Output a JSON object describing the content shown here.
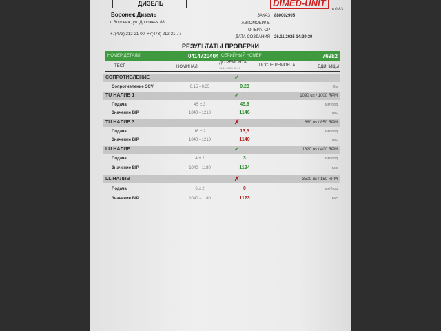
{
  "header": {
    "logo_left": "ДИЗЕЛЬ",
    "logo_right": "DIMED-UNIT",
    "version": "v 0.83",
    "company": "Воронеж Дизель",
    "address": "г. Воронеж, ул. Дорожная 88",
    "phones": "+7(473) 212-21-00, +7(473) 212-21-77",
    "order_label": "ЗАКАЗ",
    "order": "880002905",
    "car_label": "АВТОМОБИЛЬ",
    "operator_label": "ОПЕРАТОР",
    "date_label": "ДАТА СОЗДАНИЯ",
    "date": "26.11.2025  14:29:30"
  },
  "title": "РЕЗУЛЬТАТЫ ПРОВЕРКИ",
  "part": {
    "label": "НОМЕР ДЕТАЛИ",
    "value": "0414720404",
    "serial_label": "СЕРИЙНЫЙ НОМЕР",
    "serial": "76982"
  },
  "columns": {
    "test": "ТЕСТ",
    "nominal": "НОМИНАЛ",
    "before": "ДО РЕМОНТА",
    "before_date": "14.11.2025  13:19",
    "after": "ПОСЛЕ РЕМОНТА",
    "units": "ЕДИНИЦЫ"
  },
  "sections": [
    {
      "name": "СОПРОТИВЛЕНИЕ",
      "status": "ok",
      "mode": "",
      "rows": [
        {
          "test": "Сопротивление SCV",
          "nominal": "0,15 - 0,35",
          "value": "0,20",
          "units": "Ом",
          "status": "ok"
        }
      ]
    },
    {
      "name": "TU НАЛИВ 1",
      "status": "ok",
      "mode": "1090 us / 1000 RPM",
      "rows": [
        {
          "test": "Подача",
          "nominal": "45 ± 3",
          "value": "45,9",
          "units": "мм³/ход",
          "status": "ok"
        },
        {
          "test": "Значение BIP",
          "nominal": "1040 - 1210",
          "value": "1146",
          "units": "мкс",
          "status": "ok"
        }
      ]
    },
    {
      "name": "TU НАЛИВ 3",
      "status": "bad",
      "mode": "660 us / 850 RPM",
      "rows": [
        {
          "test": "Подача",
          "nominal": "16 ± 2",
          "value": "13,5",
          "units": "мм³/ход",
          "status": "bad"
        },
        {
          "test": "Значение BIP",
          "nominal": "1040 - 1210",
          "value": "1140",
          "units": "мкс",
          "status": "bad"
        }
      ]
    },
    {
      "name": "LU НАЛИВ",
      "status": "ok",
      "mode": "1320 us / 400 RPM",
      "rows": [
        {
          "test": "Подача",
          "nominal": "4 ± 2",
          "value": "3",
          "units": "мм³/ход",
          "status": "ok"
        },
        {
          "test": "Значение BIP",
          "nominal": "1040 - 1180",
          "value": "1124",
          "units": "мкс",
          "status": "ok"
        }
      ]
    },
    {
      "name": "LL НАЛИВ",
      "status": "bad",
      "mode": "3500 us / 150 RPM",
      "rows": [
        {
          "test": "Подача",
          "nominal": "6 ± 2",
          "value": "0",
          "units": "мм³/ход",
          "status": "bad"
        },
        {
          "test": "Значение BIP",
          "nominal": "1040 - 1180",
          "value": "1123",
          "units": "мкс",
          "status": "bad"
        }
      ]
    }
  ]
}
